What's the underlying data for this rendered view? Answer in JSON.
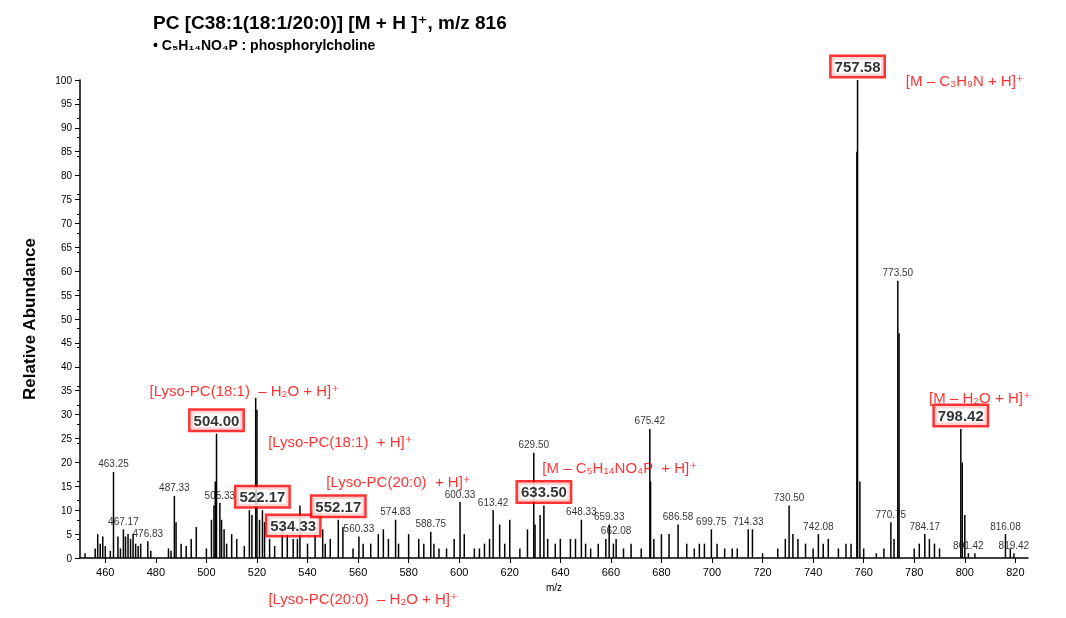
{
  "chart_data": {
    "type": "bar",
    "title": "PC [C38:1(18:1/20:0)] [M + H ]⁺, m/z 816",
    "subtitle": "• C₅H₁₄NO₄P : phosphorylcholine",
    "xlabel": "m/z",
    "ylabel": "Relative Abundance",
    "series": [
      {
        "color": "#000000",
        "x": [
          452,
          456,
          457,
          458,
          459,
          460,
          462,
          463.25,
          465,
          466,
          467.17,
          468,
          469,
          470,
          471,
          472,
          473,
          474,
          476.83,
          478,
          485,
          486,
          487.33,
          488,
          490,
          492,
          494,
          496,
          500,
          502,
          503,
          503.5,
          505.33,
          506,
          507,
          508,
          510,
          512,
          515,
          517,
          518,
          519.5,
          520,
          521,
          523,
          525,
          527,
          530,
          532,
          536,
          537,
          540,
          543,
          546,
          547,
          549,
          554,
          558,
          560.33,
          562,
          565,
          568,
          570,
          572,
          574.83,
          576,
          580,
          584,
          586,
          588.75,
          590,
          592,
          595,
          598,
          600.33,
          602,
          606,
          608,
          610,
          612,
          613.42,
          616,
          618,
          620,
          624,
          627,
          629.5,
          630,
          632,
          635,
          638,
          640,
          644,
          646,
          648.33,
          650,
          652,
          655,
          658,
          659.33,
          661,
          662.08,
          665,
          668,
          672,
          675.42,
          675.7,
          677,
          680,
          683,
          686.58,
          690,
          693,
          695,
          697,
          699.75,
          702,
          705,
          708,
          710,
          714.33,
          716,
          720,
          726,
          729,
          730.5,
          732,
          734,
          737,
          740,
          742.08,
          744,
          746,
          750,
          753,
          755,
          757.3,
          758.5,
          760,
          765,
          768,
          770.75,
          772,
          773.5,
          774,
          780,
          782,
          784.17,
          786,
          788,
          790,
          799,
          800,
          801.42,
          804,
          816.08,
          818,
          819.42
        ],
        "values": [
          1,
          2,
          5,
          3,
          4.5,
          2.5,
          1.5,
          18,
          4.5,
          2,
          6,
          4.5,
          5,
          4,
          5,
          3,
          2.5,
          3,
          3.5,
          1.5,
          2,
          1.5,
          13,
          7.5,
          3,
          2.5,
          4,
          6.5,
          2,
          8,
          11,
          16,
          11.5,
          8,
          6,
          3,
          5,
          4,
          2.5,
          10,
          9,
          33.5,
          31,
          8,
          7.5,
          4,
          2.5,
          7,
          5,
          4,
          11,
          3,
          5,
          6,
          3,
          4,
          6.5,
          2,
          4.5,
          3,
          3,
          5,
          6,
          4,
          8,
          3,
          5,
          4,
          3,
          5.5,
          3,
          2,
          2,
          4,
          11.7,
          5,
          2,
          2,
          3,
          4,
          10,
          7,
          3,
          8,
          2,
          6,
          22,
          7,
          9,
          4,
          3,
          4,
          4,
          4,
          8,
          3,
          2,
          3,
          4,
          7,
          3,
          4,
          2,
          3,
          2,
          27,
          16,
          4,
          5,
          5,
          7,
          3,
          2,
          3,
          3,
          6,
          3,
          2,
          2,
          2,
          6,
          6,
          1,
          2,
          4,
          11,
          5,
          4,
          3,
          2,
          5,
          3,
          4,
          2,
          3,
          3,
          85,
          16,
          2,
          1,
          2,
          7.5,
          4,
          58,
          47,
          2,
          3,
          5,
          4,
          3,
          2,
          20,
          9,
          1,
          1,
          5,
          2,
          1
        ]
      },
      {
        "color": "#000000",
        "x": [
          504.0,
          522.17,
          534.33,
          552.17,
          633.5,
          757.58,
          798.42
        ],
        "values": [
          26,
          10,
          4,
          8,
          11,
          100,
          27
        ]
      }
    ],
    "annotations": [
      {
        "text": "463.25",
        "x": 463.25,
        "y": 18
      },
      {
        "text": "467.17",
        "x": 467.17,
        "y": 6
      },
      {
        "text": "476.83",
        "x": 476.83,
        "y": 3.5
      },
      {
        "text": "487.33",
        "x": 487.33,
        "y": 13
      },
      {
        "text": "504.00",
        "x": 504.0,
        "y": 26
      },
      {
        "text": "505.33",
        "x": 505.33,
        "y": 11.5
      },
      {
        "text": "522.17",
        "x": 522.17,
        "y": 10
      },
      {
        "text": "534.33",
        "x": 534.33,
        "y": 4
      },
      {
        "text": "552.17",
        "x": 552.17,
        "y": 8
      },
      {
        "text": "560.33",
        "x": 560.33,
        "y": 4.5
      },
      {
        "text": "574.83",
        "x": 574.83,
        "y": 8
      },
      {
        "text": "588.75",
        "x": 588.75,
        "y": 5.5
      },
      {
        "text": "600.33",
        "x": 600.33,
        "y": 11.7
      },
      {
        "text": "613.42",
        "x": 613.42,
        "y": 10
      },
      {
        "text": "629.50",
        "x": 629.5,
        "y": 22
      },
      {
        "text": "633.50",
        "x": 633.5,
        "y": 11
      },
      {
        "text": "648.33",
        "x": 648.33,
        "y": 8
      },
      {
        "text": "659.33",
        "x": 659.33,
        "y": 7
      },
      {
        "text": "662.08",
        "x": 662.08,
        "y": 4
      },
      {
        "text": "675.42",
        "x": 675.42,
        "y": 27
      },
      {
        "text": "686.58",
        "x": 686.58,
        "y": 7
      },
      {
        "text": "699.75",
        "x": 699.75,
        "y": 6
      },
      {
        "text": "714.33",
        "x": 714.33,
        "y": 6
      },
      {
        "text": "730.50",
        "x": 730.5,
        "y": 11
      },
      {
        "text": "742.08",
        "x": 742.08,
        "y": 5
      },
      {
        "text": "757.58",
        "x": 757.58,
        "y": 100
      },
      {
        "text": "770.75",
        "x": 770.75,
        "y": 7.5
      },
      {
        "text": "773.50",
        "x": 773.5,
        "y": 58
      },
      {
        "text": "784.17",
        "x": 784.17,
        "y": 5
      },
      {
        "text": "798.42",
        "x": 798.42,
        "y": 27
      },
      {
        "text": "801.42",
        "x": 801.42,
        "y": 1
      },
      {
        "text": "816.08",
        "x": 816.08,
        "y": 5
      },
      {
        "text": "819.42",
        "x": 819.42,
        "y": 1
      },
      "[M – C₃H₉N + H]⁺",
      "[Lyso-PC(18:1)  – H₂O + H]⁺",
      "[Lyso-PC(18:1)  + H]⁺",
      "[Lyso-PC(20:0)  + H]⁺",
      "[Lyso-PC(20:0)  – H₂O + H]⁺",
      "[M – C₅H₁₄NO₄P  + H]⁺",
      "[M – H₂O + H]⁺"
    ],
    "xlim": [
      450,
      825
    ],
    "xticks": [
      460,
      480,
      500,
      520,
      540,
      560,
      580,
      600,
      620,
      640,
      660,
      680,
      700,
      720,
      740,
      760,
      780,
      800,
      820
    ],
    "ylim": [
      0,
      100
    ],
    "yticks": [
      0,
      5,
      10,
      15,
      20,
      25,
      30,
      35,
      40,
      45,
      50,
      55,
      60,
      65,
      70,
      75,
      80,
      85,
      90,
      95,
      100
    ],
    "grid": false
  }
}
